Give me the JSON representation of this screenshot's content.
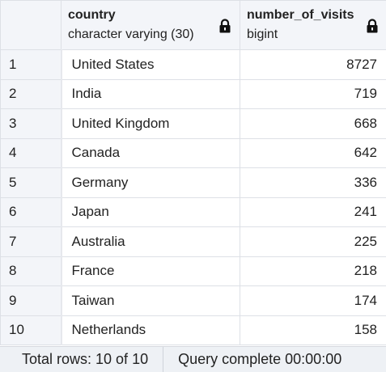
{
  "columns": [
    {
      "name": "country",
      "type": "character varying (30)",
      "locked": true
    },
    {
      "name": "number_of_visits",
      "type": "bigint",
      "locked": true
    }
  ],
  "rows": [
    {
      "index": "1",
      "country": "United States",
      "visits": "8727"
    },
    {
      "index": "2",
      "country": "India",
      "visits": "719"
    },
    {
      "index": "3",
      "country": "United Kingdom",
      "visits": "668"
    },
    {
      "index": "4",
      "country": "Canada",
      "visits": "642"
    },
    {
      "index": "5",
      "country": "Germany",
      "visits": "336"
    },
    {
      "index": "6",
      "country": "Japan",
      "visits": "241"
    },
    {
      "index": "7",
      "country": "Australia",
      "visits": "225"
    },
    {
      "index": "8",
      "country": "France",
      "visits": "218"
    },
    {
      "index": "9",
      "country": "Taiwan",
      "visits": "174"
    },
    {
      "index": "10",
      "country": "Netherlands",
      "visits": "158"
    }
  ],
  "status": {
    "total_rows": "Total rows: 10 of 10",
    "query_status": "Query complete 00:00:00"
  },
  "icons": {
    "column_lock": "lock-icon"
  },
  "colors": {
    "header_bg": "#f3f5f9",
    "border": "#dde0e6",
    "status_bg": "#eef1f5"
  }
}
